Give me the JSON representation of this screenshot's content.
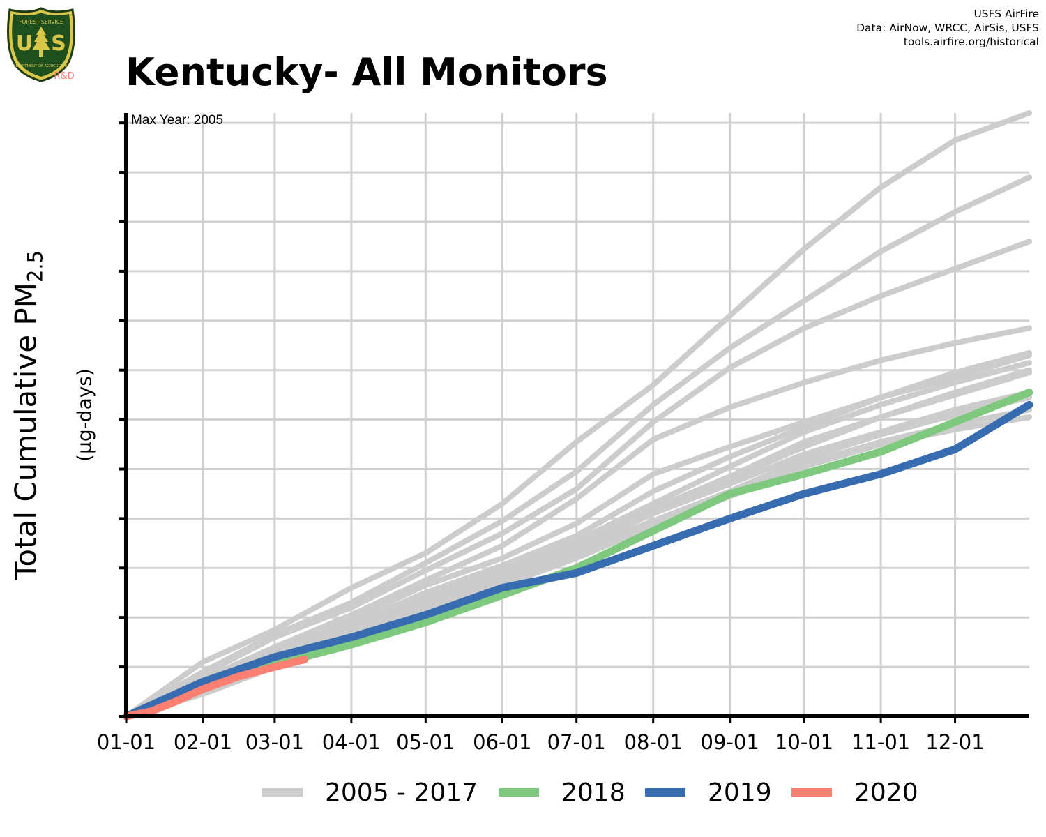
{
  "logo": {
    "top_text": "FOREST SERVICE",
    "initials_left": "U",
    "initials_right": "S",
    "bottom_text": "DEPARTMENT OF AGRICULTURE",
    "tag": "R&D",
    "icon": "forest-service-shield-icon"
  },
  "credits": {
    "line1": "USFS AirFire",
    "line2": "Data: AirNow, WRCC, AirSis, USFS",
    "line3": "tools.airfire.org/historical"
  },
  "chart_data": {
    "type": "line",
    "title": "Kentucky- All Monitors",
    "annotation": "Max Year: 2005",
    "ylabel_main": "Total Cumulative PM",
    "ylabel_sub": "2.5",
    "yunit": "(µg-days)",
    "xlabel": "",
    "x_ticks": [
      {
        "label": "01-01",
        "day": 0
      },
      {
        "label": "02-01",
        "day": 31
      },
      {
        "label": "03-01",
        "day": 60
      },
      {
        "label": "04-01",
        "day": 91
      },
      {
        "label": "05-01",
        "day": 121
      },
      {
        "label": "06-01",
        "day": 152
      },
      {
        "label": "07-01",
        "day": 182
      },
      {
        "label": "08-01",
        "day": 213
      },
      {
        "label": "09-01",
        "day": 244
      },
      {
        "label": "10-01",
        "day": 274
      },
      {
        "label": "11-01",
        "day": 305
      },
      {
        "label": "12-01",
        "day": 335
      }
    ],
    "xlim": [
      0,
      365
    ],
    "ylim": [
      0,
      12.2
    ],
    "y_ticks": [
      0,
      1,
      2,
      3,
      4,
      5,
      6,
      7,
      8,
      9,
      10,
      11,
      12
    ],
    "y_tick_labels_shown": false,
    "grid": true,
    "legend_position": "bottom",
    "colors": {
      "historical": "#cccccc",
      "y2018": "#7fc97f",
      "y2019": "#386cb0",
      "y2020": "#fb8072"
    },
    "series": [
      {
        "name": "2005 - 2017",
        "group": "historical",
        "x": [
          0,
          31,
          60,
          91,
          121,
          152,
          182,
          213,
          244,
          274,
          305,
          335,
          365
        ],
        "y": [
          0,
          1.1,
          1.75,
          2.6,
          3.3,
          4.3,
          5.55,
          6.7,
          8.1,
          9.45,
          10.7,
          11.65,
          12.2
        ]
      },
      {
        "group": "historical",
        "x": [
          0,
          31,
          60,
          91,
          121,
          152,
          182,
          213,
          244,
          274,
          305,
          335,
          365
        ],
        "y": [
          0,
          0.9,
          1.65,
          2.3,
          3.1,
          3.95,
          4.95,
          6.3,
          7.45,
          8.4,
          9.4,
          10.2,
          10.9
        ]
      },
      {
        "group": "historical",
        "x": [
          0,
          31,
          60,
          91,
          121,
          152,
          182,
          213,
          244,
          274,
          305,
          335,
          365
        ],
        "y": [
          0,
          0.85,
          1.6,
          2.2,
          2.95,
          3.7,
          4.6,
          5.95,
          7.05,
          7.85,
          8.5,
          9.05,
          9.6
        ]
      },
      {
        "group": "historical",
        "x": [
          0,
          31,
          60,
          91,
          121,
          152,
          182,
          213,
          244,
          274,
          305,
          335,
          365
        ],
        "y": [
          0,
          0.75,
          1.4,
          2.05,
          2.75,
          3.45,
          4.4,
          5.6,
          6.25,
          6.75,
          7.2,
          7.55,
          7.85
        ]
      },
      {
        "group": "historical",
        "x": [
          0,
          31,
          60,
          91,
          121,
          152,
          182,
          213,
          244,
          274,
          305,
          335,
          365
        ],
        "y": [
          0,
          0.7,
          1.35,
          1.95,
          2.65,
          3.2,
          3.9,
          4.9,
          5.45,
          5.95,
          6.45,
          6.85,
          7.3
        ]
      },
      {
        "group": "historical",
        "x": [
          0,
          31,
          60,
          91,
          121,
          152,
          182,
          213,
          244,
          274,
          305,
          335,
          365
        ],
        "y": [
          0,
          0.65,
          1.3,
          1.85,
          2.5,
          3.05,
          3.65,
          4.55,
          5.25,
          5.85,
          6.45,
          6.95,
          7.35
        ]
      },
      {
        "group": "historical",
        "x": [
          0,
          31,
          60,
          91,
          121,
          152,
          182,
          213,
          244,
          274,
          305,
          335,
          365
        ],
        "y": [
          0,
          0.6,
          1.2,
          1.8,
          2.4,
          2.95,
          3.55,
          4.3,
          5.05,
          5.75,
          6.3,
          6.75,
          7.15
        ]
      },
      {
        "group": "historical",
        "x": [
          0,
          31,
          60,
          91,
          121,
          152,
          182,
          213,
          244,
          274,
          305,
          335,
          365
        ],
        "y": [
          0,
          0.6,
          1.15,
          1.75,
          2.35,
          2.9,
          3.5,
          4.2,
          4.85,
          5.55,
          6.05,
          6.55,
          7.0
        ]
      },
      {
        "group": "historical",
        "x": [
          0,
          31,
          60,
          91,
          121,
          152,
          182,
          213,
          244,
          274,
          305,
          335,
          365
        ],
        "y": [
          0,
          0.55,
          1.1,
          1.7,
          2.3,
          2.85,
          3.4,
          4.1,
          4.7,
          5.3,
          5.75,
          6.2,
          6.55
        ]
      },
      {
        "group": "historical",
        "x": [
          0,
          31,
          60,
          91,
          121,
          152,
          182,
          213,
          244,
          274,
          305,
          335,
          365
        ],
        "y": [
          0,
          0.5,
          1.05,
          1.6,
          2.2,
          2.75,
          3.3,
          3.95,
          4.5,
          5.1,
          5.55,
          5.9,
          6.2
        ]
      },
      {
        "group": "historical",
        "x": [
          0,
          31,
          60,
          91,
          121,
          152,
          182,
          213,
          244,
          274,
          305,
          335,
          365
        ],
        "y": [
          0,
          0.45,
          1.0,
          1.55,
          2.1,
          2.65,
          3.2,
          3.85,
          4.45,
          5.05,
          5.5,
          5.8,
          6.05
        ]
      },
      {
        "group": "historical",
        "x": [
          0,
          31,
          60,
          91,
          121,
          152,
          182,
          213,
          244,
          274,
          305,
          335,
          365
        ],
        "y": [
          0,
          0.5,
          1.05,
          1.65,
          2.25,
          2.8,
          3.35,
          3.95,
          4.55,
          5.2,
          5.7,
          6.1,
          6.45
        ]
      },
      {
        "group": "historical",
        "x": [
          0,
          31,
          60,
          91,
          121,
          152,
          182,
          213,
          244,
          274,
          305,
          335,
          365
        ],
        "y": [
          0,
          0.55,
          1.1,
          1.7,
          2.3,
          2.9,
          3.45,
          4.1,
          4.8,
          5.45,
          6.05,
          6.5,
          6.95
        ]
      },
      {
        "name": "2018",
        "group": "y2018",
        "x": [
          0,
          31,
          60,
          72,
          91,
          121,
          152,
          182,
          213,
          244,
          274,
          305,
          335,
          365
        ],
        "y": [
          0,
          0.55,
          1.1,
          1.2,
          1.45,
          1.9,
          2.45,
          3.0,
          3.75,
          4.5,
          4.9,
          5.35,
          5.95,
          6.55
        ]
      },
      {
        "name": "2019",
        "group": "y2019",
        "x": [
          0,
          31,
          60,
          91,
          121,
          152,
          182,
          213,
          244,
          274,
          305,
          335,
          365
        ],
        "y": [
          0,
          0.7,
          1.2,
          1.6,
          2.05,
          2.6,
          2.9,
          3.45,
          4.0,
          4.5,
          4.9,
          5.4,
          6.3
        ]
      },
      {
        "name": "2020",
        "group": "y2020",
        "x": [
          0,
          10,
          20,
          31,
          45,
          60,
          72
        ],
        "y": [
          0,
          0.1,
          0.3,
          0.55,
          0.8,
          1.0,
          1.15
        ]
      }
    ]
  },
  "legend": [
    {
      "label": "2005 - 2017",
      "color": "#cccccc"
    },
    {
      "label": "2018",
      "color": "#7fc97f"
    },
    {
      "label": "2019",
      "color": "#386cb0"
    },
    {
      "label": "2020",
      "color": "#fb8072"
    }
  ]
}
